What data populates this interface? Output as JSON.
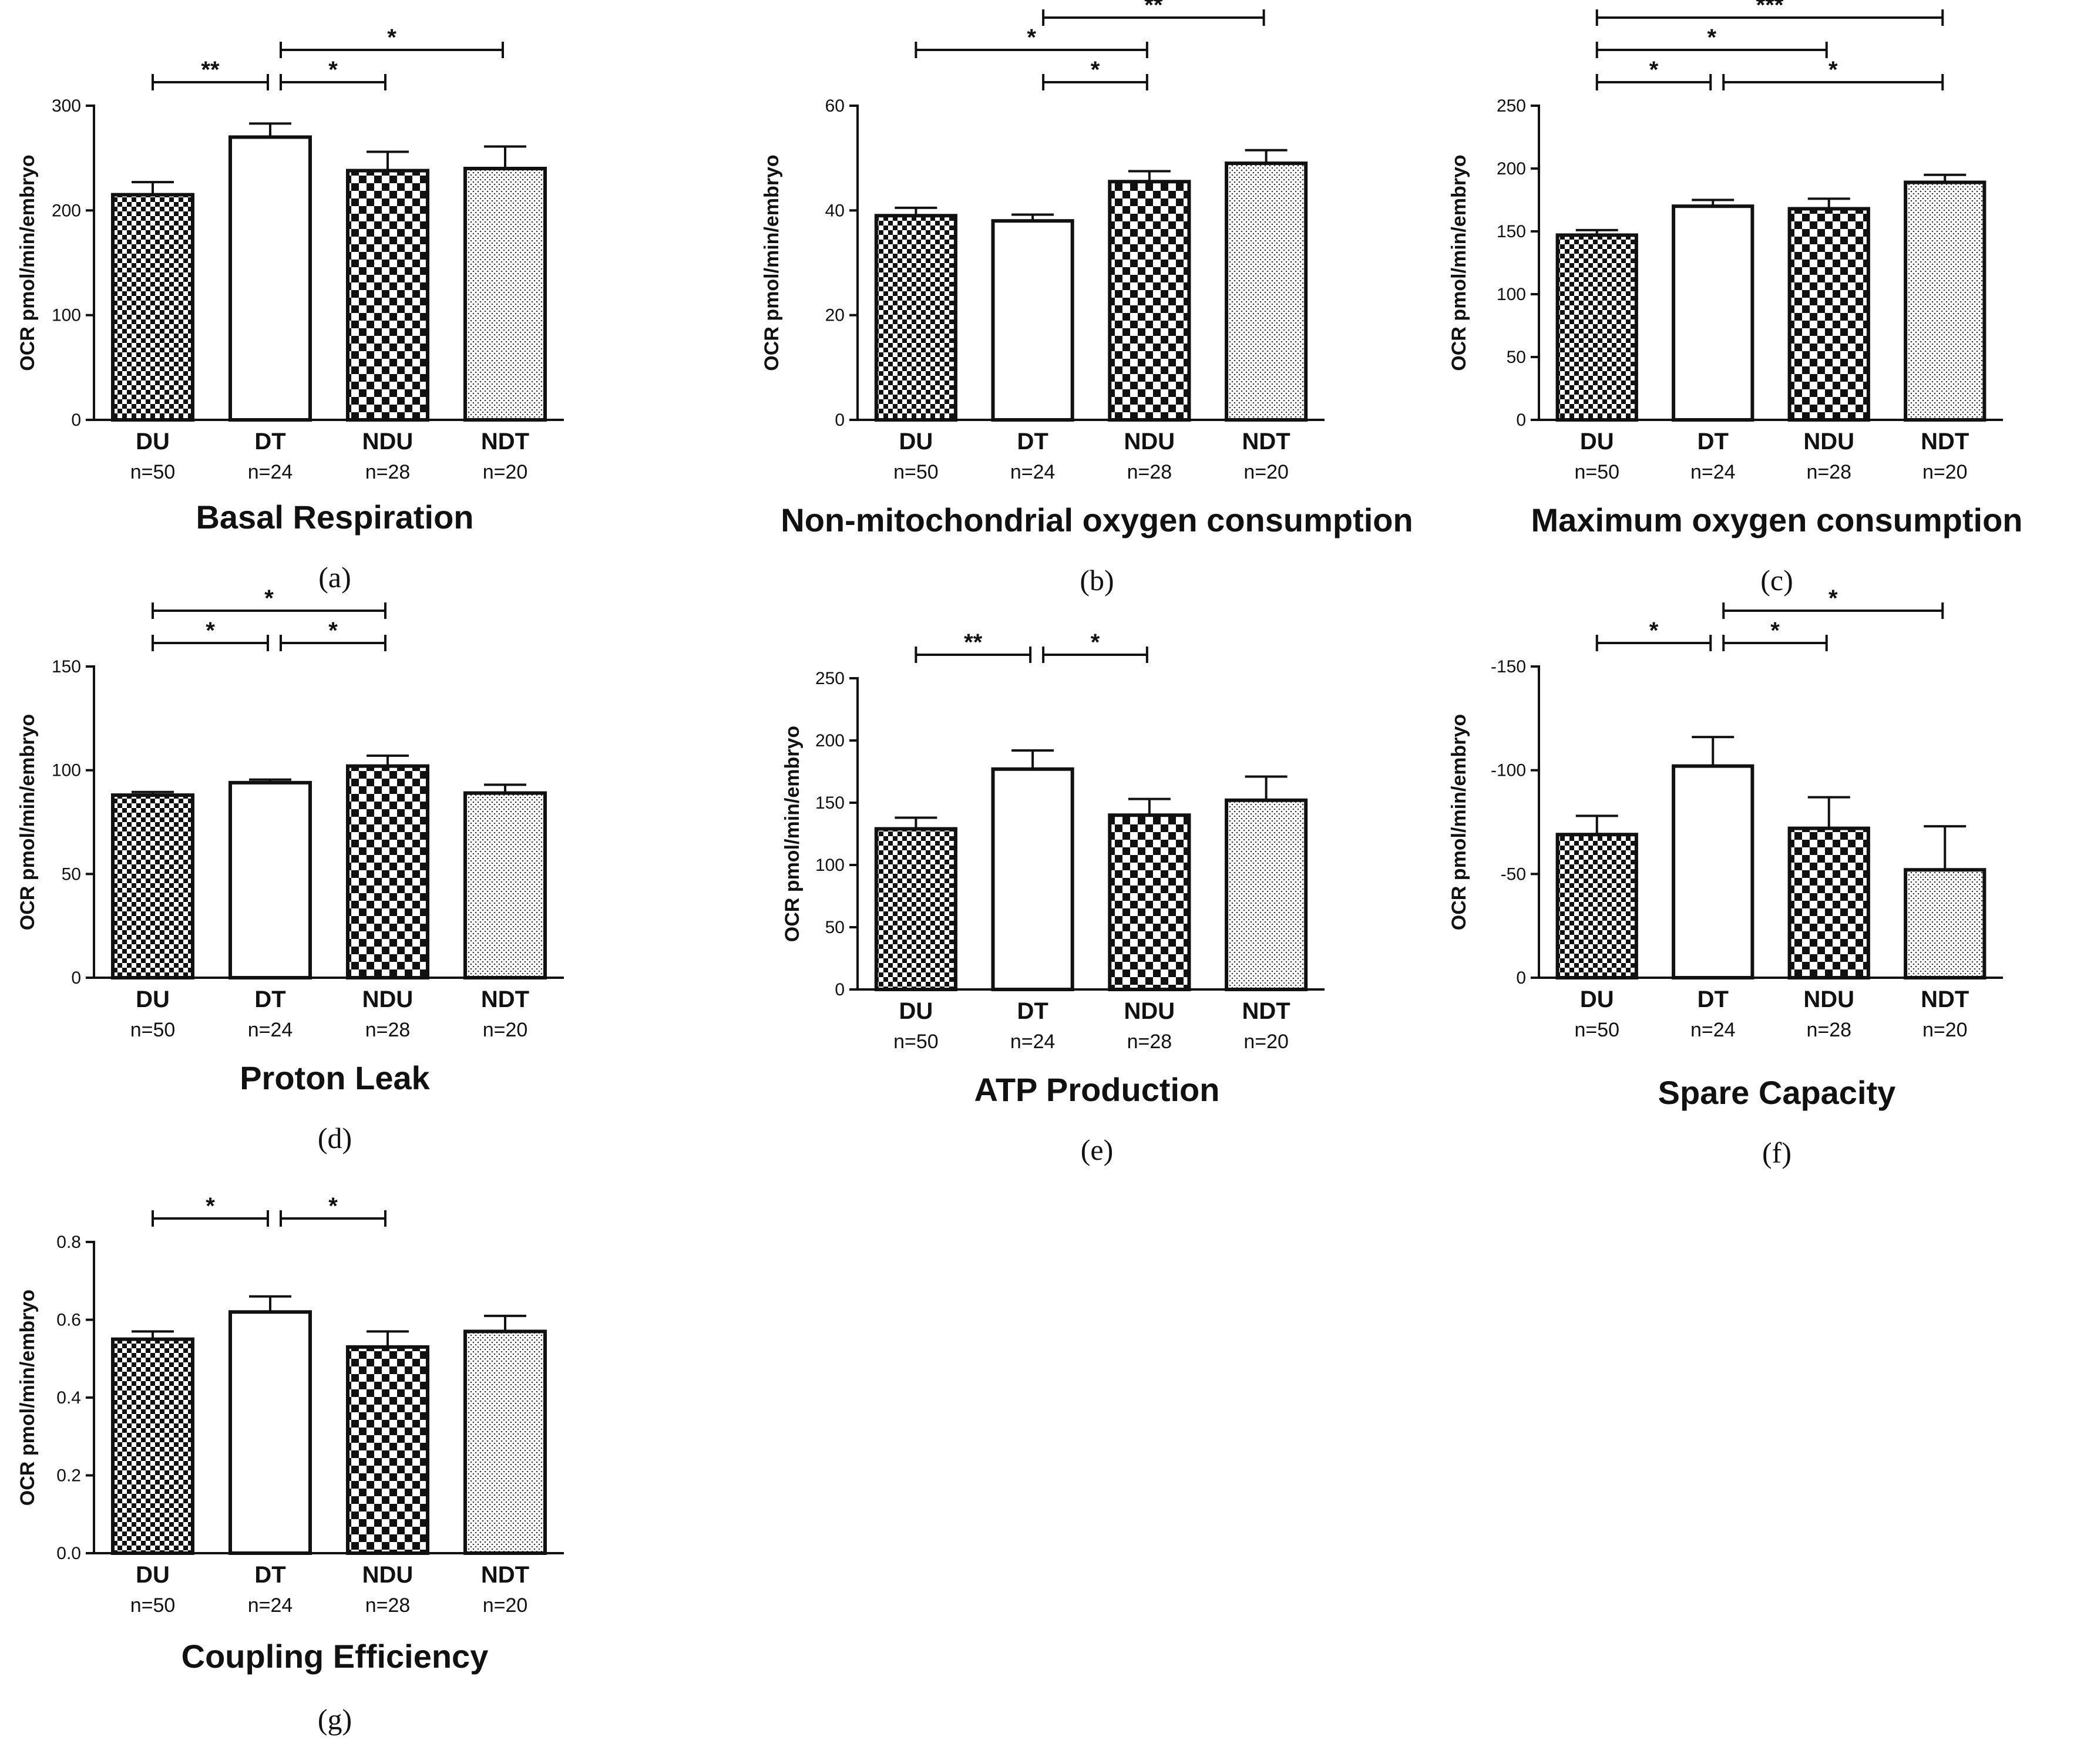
{
  "chart_data": [
    {
      "type": "bar",
      "panel_label": "(a)",
      "title": "Basal Respiration",
      "ylabel": "OCR pmol/min/embryo",
      "ylim": [
        0,
        300
      ],
      "yticks": [
        "0",
        "100",
        "200",
        "300"
      ],
      "yticks_values": [
        0,
        100,
        200,
        300
      ],
      "categories": [
        "DU",
        "DT",
        "NDU",
        "NDT"
      ],
      "sample_sizes": [
        "n=50",
        "n=24",
        "n=28",
        "n=20"
      ],
      "values": [
        215,
        270,
        238,
        240
      ],
      "errors": [
        12,
        13,
        18,
        21
      ],
      "significance": [
        {
          "from": 0,
          "to": 1,
          "label": "**",
          "level": 0
        },
        {
          "from": 1,
          "to": 2,
          "label": "*",
          "level": 0
        },
        {
          "from": 1,
          "to": 3,
          "label": "*",
          "level": 1
        }
      ]
    },
    {
      "type": "bar",
      "panel_label": "(b)",
      "title": "Non-mitochondrial oxygen consumption",
      "ylabel": "OCR pmol/min/embryo",
      "ylim": [
        0,
        60
      ],
      "yticks": [
        "0",
        "20",
        "40",
        "60"
      ],
      "yticks_values": [
        0,
        20,
        40,
        60
      ],
      "categories": [
        "DU",
        "DT",
        "NDU",
        "NDT"
      ],
      "sample_sizes": [
        "n=50",
        "n=24",
        "n=28",
        "n=20"
      ],
      "values": [
        39,
        38,
        45.5,
        49
      ],
      "errors": [
        1.5,
        1.2,
        2,
        2.5
      ],
      "significance": [
        {
          "from": 1,
          "to": 2,
          "label": "*",
          "level": 0
        },
        {
          "from": 0,
          "to": 2,
          "label": "*",
          "level": 1
        },
        {
          "from": 1,
          "to": 3,
          "label": "**",
          "level": 2
        },
        {
          "from": 0,
          "to": 3,
          "label": "**",
          "level": 3
        }
      ]
    },
    {
      "type": "bar",
      "panel_label": "(c)",
      "title": "Maximum oxygen consumption",
      "ylabel": "OCR pmol/min/embryo",
      "ylim": [
        0,
        250
      ],
      "yticks": [
        "0",
        "50",
        "100",
        "150",
        "200",
        "250"
      ],
      "yticks_values": [
        0,
        50,
        100,
        150,
        200,
        250
      ],
      "categories": [
        "DU",
        "DT",
        "NDU",
        "NDT"
      ],
      "sample_sizes": [
        "n=50",
        "n=24",
        "n=28",
        "n=20"
      ],
      "values": [
        147,
        170,
        168,
        189
      ],
      "errors": [
        4,
        5,
        8,
        6
      ],
      "significance": [
        {
          "from": 0,
          "to": 1,
          "label": "*",
          "level": 0
        },
        {
          "from": 1,
          "to": 3,
          "label": "*",
          "level": 0
        },
        {
          "from": 0,
          "to": 2,
          "label": "*",
          "level": 1
        },
        {
          "from": 0,
          "to": 3,
          "label": "***",
          "level": 2
        }
      ]
    },
    {
      "type": "bar",
      "panel_label": "(d)",
      "title": "Proton Leak",
      "ylabel": "OCR pmol/min/embryo",
      "ylim": [
        0,
        150
      ],
      "yticks": [
        "0",
        "50",
        "100",
        "150"
      ],
      "yticks_values": [
        0,
        50,
        100,
        150
      ],
      "categories": [
        "DU",
        "DT",
        "NDU",
        "NDT"
      ],
      "sample_sizes": [
        "n=50",
        "n=24",
        "n=28",
        "n=20"
      ],
      "values": [
        88,
        94,
        102,
        89
      ],
      "errors": [
        1.5,
        1.5,
        5,
        4
      ],
      "significance": [
        {
          "from": 0,
          "to": 1,
          "label": "*",
          "level": 0
        },
        {
          "from": 1,
          "to": 2,
          "label": "*",
          "level": 0
        },
        {
          "from": 0,
          "to": 2,
          "label": "*",
          "level": 1
        }
      ]
    },
    {
      "type": "bar",
      "panel_label": "(e)",
      "title": "ATP Production",
      "ylabel": "OCR pmol/min/embryo",
      "ylim": [
        0,
        250
      ],
      "yticks": [
        "0",
        "50",
        "100",
        "150",
        "200",
        "250"
      ],
      "yticks_values": [
        0,
        50,
        100,
        150,
        200,
        250
      ],
      "categories": [
        "DU",
        "DT",
        "NDU",
        "NDT"
      ],
      "sample_sizes": [
        "n=50",
        "n=24",
        "n=28",
        "n=20"
      ],
      "values": [
        129,
        177,
        140,
        152
      ],
      "errors": [
        9,
        15,
        13,
        19
      ],
      "significance": [
        {
          "from": 0,
          "to": 1,
          "label": "**",
          "level": 0
        },
        {
          "from": 1,
          "to": 2,
          "label": "*",
          "level": 0
        }
      ]
    },
    {
      "type": "bar",
      "panel_label": "(f)",
      "title": "Spare Capacity",
      "ylabel": "OCR pmol/min/embryo",
      "ylim": [
        0,
        -150
      ],
      "yticks": [
        "0",
        "-50",
        "-100",
        "-150"
      ],
      "yticks_values": [
        0,
        -50,
        -100,
        -150
      ],
      "categories": [
        "DU",
        "DT",
        "NDU",
        "NDT"
      ],
      "sample_sizes": [
        "n=50",
        "n=24",
        "n=28",
        "n=20"
      ],
      "values": [
        -69,
        -102,
        -72,
        -52
      ],
      "errors": [
        9,
        14,
        15,
        21
      ],
      "significance": [
        {
          "from": 0,
          "to": 1,
          "label": "*",
          "level": 0
        },
        {
          "from": 1,
          "to": 2,
          "label": "*",
          "level": 0
        },
        {
          "from": 1,
          "to": 3,
          "label": "*",
          "level": 1
        }
      ]
    },
    {
      "type": "bar",
      "panel_label": "(g)",
      "title": "Coupling Efficiency",
      "ylabel": "OCR pmol/min/embryo",
      "ylim": [
        0,
        0.8
      ],
      "yticks": [
        "0.0",
        "0.2",
        "0.4",
        "0.6",
        "0.8"
      ],
      "yticks_values": [
        0,
        0.2,
        0.4,
        0.6,
        0.8
      ],
      "categories": [
        "DU",
        "DT",
        "NDU",
        "NDT"
      ],
      "sample_sizes": [
        "n=50",
        "n=24",
        "n=28",
        "n=20"
      ],
      "values": [
        0.55,
        0.62,
        0.53,
        0.57
      ],
      "errors": [
        0.02,
        0.04,
        0.04,
        0.04
      ],
      "significance": [
        {
          "from": 0,
          "to": 1,
          "label": "*",
          "level": 0
        },
        {
          "from": 1,
          "to": 2,
          "label": "*",
          "level": 0
        }
      ]
    }
  ]
}
